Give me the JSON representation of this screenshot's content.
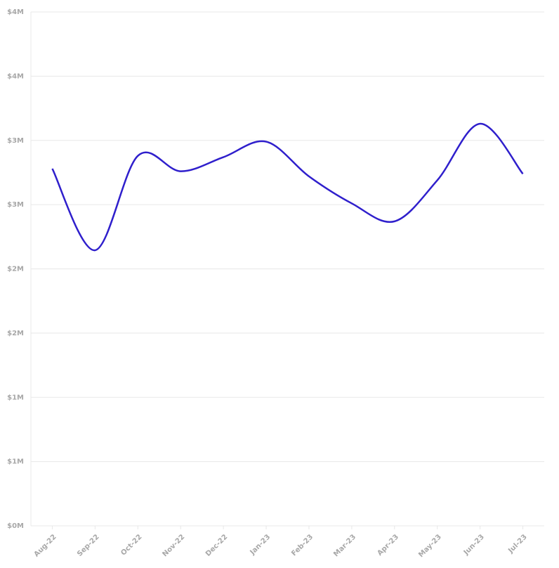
{
  "chart_data": {
    "type": "line",
    "categories": [
      "Aug-22",
      "Sep-22",
      "Oct-22",
      "Nov-22",
      "Dec-22",
      "Jan-23",
      "Feb-23",
      "Mar-23",
      "Apr-23",
      "May-23",
      "Jun-23",
      "Jul-23"
    ],
    "series": [
      {
        "color": "#2f1fcc",
        "values": [
          2.78,
          2.145,
          2.88,
          2.76,
          2.87,
          2.99,
          2.72,
          2.51,
          2.37,
          2.69,
          3.13,
          2.74
        ]
      }
    ],
    "ylim": [
      0,
      4
    ],
    "yticks": [
      {
        "value": 0,
        "label": "$0M"
      },
      {
        "value": 0.5,
        "label": "$1M"
      },
      {
        "value": 1,
        "label": "$1M"
      },
      {
        "value": 1.5,
        "label": "$2M"
      },
      {
        "value": 2,
        "label": "$2M"
      },
      {
        "value": 2.5,
        "label": "$3M"
      },
      {
        "value": 3,
        "label": "$3M"
      },
      {
        "value": 3.5,
        "label": "$4M"
      },
      {
        "value": 4,
        "label": "$4M"
      }
    ],
    "grid": true,
    "smooth": true
  }
}
